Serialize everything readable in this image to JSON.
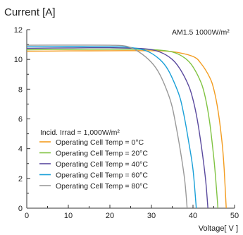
{
  "chart_data": {
    "type": "line",
    "title": "Current [A]",
    "xlabel": "Voltage[ V ]",
    "ylabel": "Current [A]",
    "xlim": [
      0,
      50
    ],
    "ylim": [
      0,
      12
    ],
    "x_ticks": [
      "0",
      "10",
      "20",
      "30",
      "40",
      "50"
    ],
    "y_ticks": [
      "0",
      "2",
      "4",
      "6",
      "8",
      "10",
      "12"
    ],
    "grid": false,
    "annotation": "AM1.5  1000W/m²",
    "legend_title": "Incid. Irrad = 1,000W/m²",
    "legend_position": "bottom-left",
    "series": [
      {
        "name": "Operating Cell Temp = 0°C",
        "color": "#f39c1f",
        "points": [
          [
            0,
            10.55
          ],
          [
            10,
            10.57
          ],
          [
            20,
            10.58
          ],
          [
            30,
            10.58
          ],
          [
            35,
            10.52
          ],
          [
            40,
            10.2
          ],
          [
            42,
            9.7
          ],
          [
            44,
            8.8
          ],
          [
            45,
            8.0
          ],
          [
            46,
            6.6
          ],
          [
            47,
            4.4
          ],
          [
            47.5,
            2.6
          ],
          [
            48,
            0
          ]
        ]
      },
      {
        "name": "Operating Cell Temp = 20°C",
        "color": "#80c342",
        "points": [
          [
            0,
            10.65
          ],
          [
            10,
            10.67
          ],
          [
            20,
            10.68
          ],
          [
            30,
            10.66
          ],
          [
            35,
            10.5
          ],
          [
            38,
            10.1
          ],
          [
            40,
            9.5
          ],
          [
            42,
            8.4
          ],
          [
            43,
            7.4
          ],
          [
            44,
            5.8
          ],
          [
            45,
            3.4
          ],
          [
            45.6,
            1.5
          ],
          [
            46,
            0
          ]
        ]
      },
      {
        "name": "Operating Cell Temp = 40°C",
        "color": "#5a4a9e",
        "points": [
          [
            0,
            10.75
          ],
          [
            10,
            10.77
          ],
          [
            20,
            10.78
          ],
          [
            28,
            10.72
          ],
          [
            32,
            10.5
          ],
          [
            35,
            10.0
          ],
          [
            37,
            9.3
          ],
          [
            39,
            8.2
          ],
          [
            40,
            7.3
          ],
          [
            41,
            6.0
          ],
          [
            42,
            4.2
          ],
          [
            43,
            2.0
          ],
          [
            43.6,
            0
          ]
        ]
      },
      {
        "name": "Operating Cell Temp = 60°C",
        "color": "#1aa0d8",
        "points": [
          [
            0,
            10.85
          ],
          [
            10,
            10.86
          ],
          [
            20,
            10.85
          ],
          [
            25,
            10.8
          ],
          [
            29,
            10.55
          ],
          [
            32,
            10.0
          ],
          [
            34,
            9.3
          ],
          [
            36,
            8.1
          ],
          [
            37,
            7.3
          ],
          [
            38,
            6.0
          ],
          [
            39,
            4.4
          ],
          [
            40,
            2.6
          ],
          [
            40.8,
            0
          ]
        ]
      },
      {
        "name": "Operating Cell Temp = 80°C",
        "color": "#999999",
        "points": [
          [
            0,
            10.95
          ],
          [
            10,
            10.96
          ],
          [
            20,
            10.95
          ],
          [
            24,
            10.88
          ],
          [
            27,
            10.5
          ],
          [
            30,
            9.8
          ],
          [
            32,
            9.0
          ],
          [
            34,
            7.7
          ],
          [
            35,
            6.8
          ],
          [
            36,
            5.4
          ],
          [
            37,
            3.8
          ],
          [
            38,
            1.9
          ],
          [
            38.6,
            0
          ]
        ]
      }
    ]
  }
}
